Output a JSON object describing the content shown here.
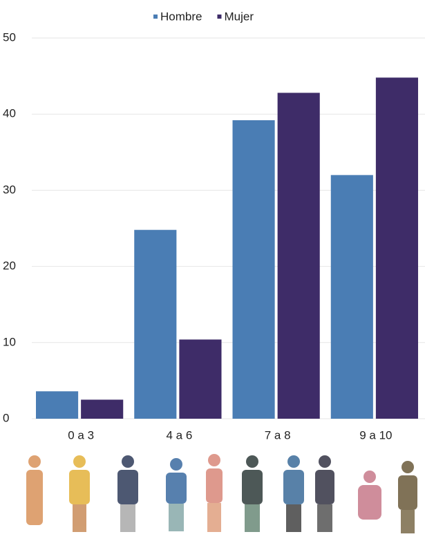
{
  "chart_data": {
    "type": "bar",
    "categories": [
      "0 a 3",
      "4 a 6",
      "7 a 8",
      "9 a 10"
    ],
    "series": [
      {
        "name": "Hombre",
        "color": "#4a7db4",
        "values": [
          3.6,
          24.8,
          39.2,
          32.0
        ]
      },
      {
        "name": "Mujer",
        "color": "#3e2c68",
        "values": [
          2.5,
          10.4,
          42.8,
          44.8
        ]
      }
    ],
    "ylim": [
      0,
      50
    ],
    "yticks": [
      0,
      10,
      20,
      30,
      40,
      50
    ],
    "grid": true,
    "legend": "top"
  }
}
